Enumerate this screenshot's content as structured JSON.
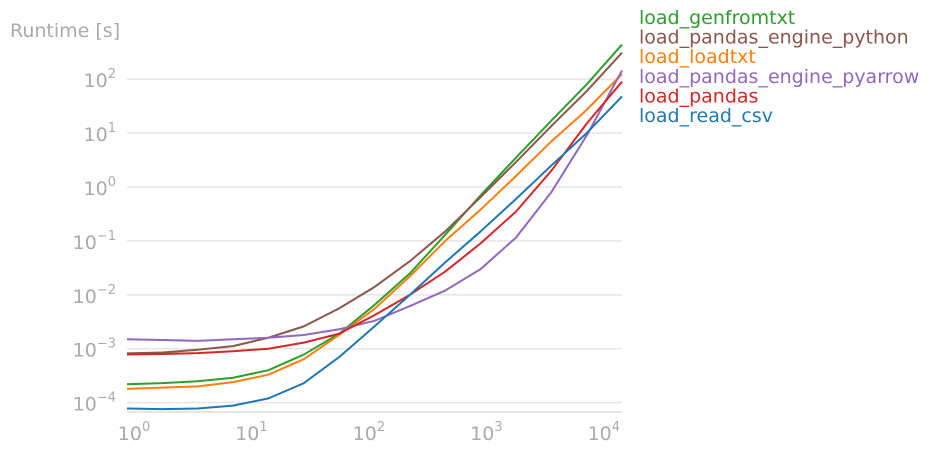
{
  "chart_data": {
    "type": "line",
    "ylabel": "Runtime [s]",
    "xscale": "log",
    "yscale": "log",
    "xlim": [
      1,
      16384
    ],
    "ylim": [
      7e-05,
      450
    ],
    "grid": "horizontal",
    "legend_position": "right",
    "x_ticks": [
      {
        "value": 1,
        "base": "10",
        "exp": "0"
      },
      {
        "value": 10,
        "base": "10",
        "exp": "1"
      },
      {
        "value": 100,
        "base": "10",
        "exp": "2"
      },
      {
        "value": 1000,
        "base": "10",
        "exp": "3"
      },
      {
        "value": 10000,
        "base": "10",
        "exp": "4"
      }
    ],
    "y_ticks": [
      {
        "value": 0.0001,
        "base": "10",
        "exp": "−4"
      },
      {
        "value": 0.001,
        "base": "10",
        "exp": "−3"
      },
      {
        "value": 0.01,
        "base": "10",
        "exp": "−2"
      },
      {
        "value": 0.1,
        "base": "10",
        "exp": "−1"
      },
      {
        "value": 1,
        "base": "10",
        "exp": "0"
      },
      {
        "value": 10,
        "base": "10",
        "exp": "1"
      },
      {
        "value": 100,
        "base": "10",
        "exp": "2"
      }
    ],
    "x": [
      1,
      2,
      4,
      8,
      16,
      32,
      64,
      128,
      256,
      512,
      1024,
      2048,
      4096,
      8192,
      16384
    ],
    "series": [
      {
        "name": "load_genfromtxt",
        "color": "#2ca02c",
        "values": [
          0.00022,
          0.00023,
          0.00025,
          0.00029,
          0.0004,
          0.00078,
          0.0019,
          0.0065,
          0.025,
          0.13,
          0.7,
          3.5,
          17,
          80,
          440
        ]
      },
      {
        "name": "load_pandas_engine_python",
        "color": "#8c564b",
        "values": [
          0.00082,
          0.00085,
          0.00096,
          0.00112,
          0.0016,
          0.0026,
          0.0056,
          0.014,
          0.042,
          0.15,
          0.65,
          2.9,
          13.5,
          60,
          310
        ]
      },
      {
        "name": "load_loadtxt",
        "color": "#ff7f0e",
        "values": [
          0.00018,
          0.00019,
          0.0002,
          0.00024,
          0.00033,
          0.00064,
          0.0018,
          0.0055,
          0.022,
          0.1,
          0.38,
          1.6,
          7,
          27,
          125
        ]
      },
      {
        "name": "load_pandas_engine_pyarrow",
        "color": "#9467bd",
        "values": [
          0.0015,
          0.00145,
          0.0014,
          0.0015,
          0.0016,
          0.0018,
          0.0023,
          0.0033,
          0.0062,
          0.012,
          0.03,
          0.115,
          0.8,
          9,
          145
        ]
      },
      {
        "name": "load_pandas",
        "color": "#d62728",
        "values": [
          0.00078,
          0.0008,
          0.00083,
          0.0009,
          0.001,
          0.0013,
          0.0019,
          0.0042,
          0.01,
          0.027,
          0.09,
          0.35,
          2,
          15,
          90
        ]
      },
      {
        "name": "load_read_csv",
        "color": "#1f77b4",
        "values": [
          7.8e-05,
          7.6e-05,
          7.8e-05,
          8.8e-05,
          0.00012,
          0.00023,
          0.0007,
          0.0026,
          0.01,
          0.04,
          0.15,
          0.6,
          2.5,
          10,
          48
        ]
      }
    ]
  }
}
